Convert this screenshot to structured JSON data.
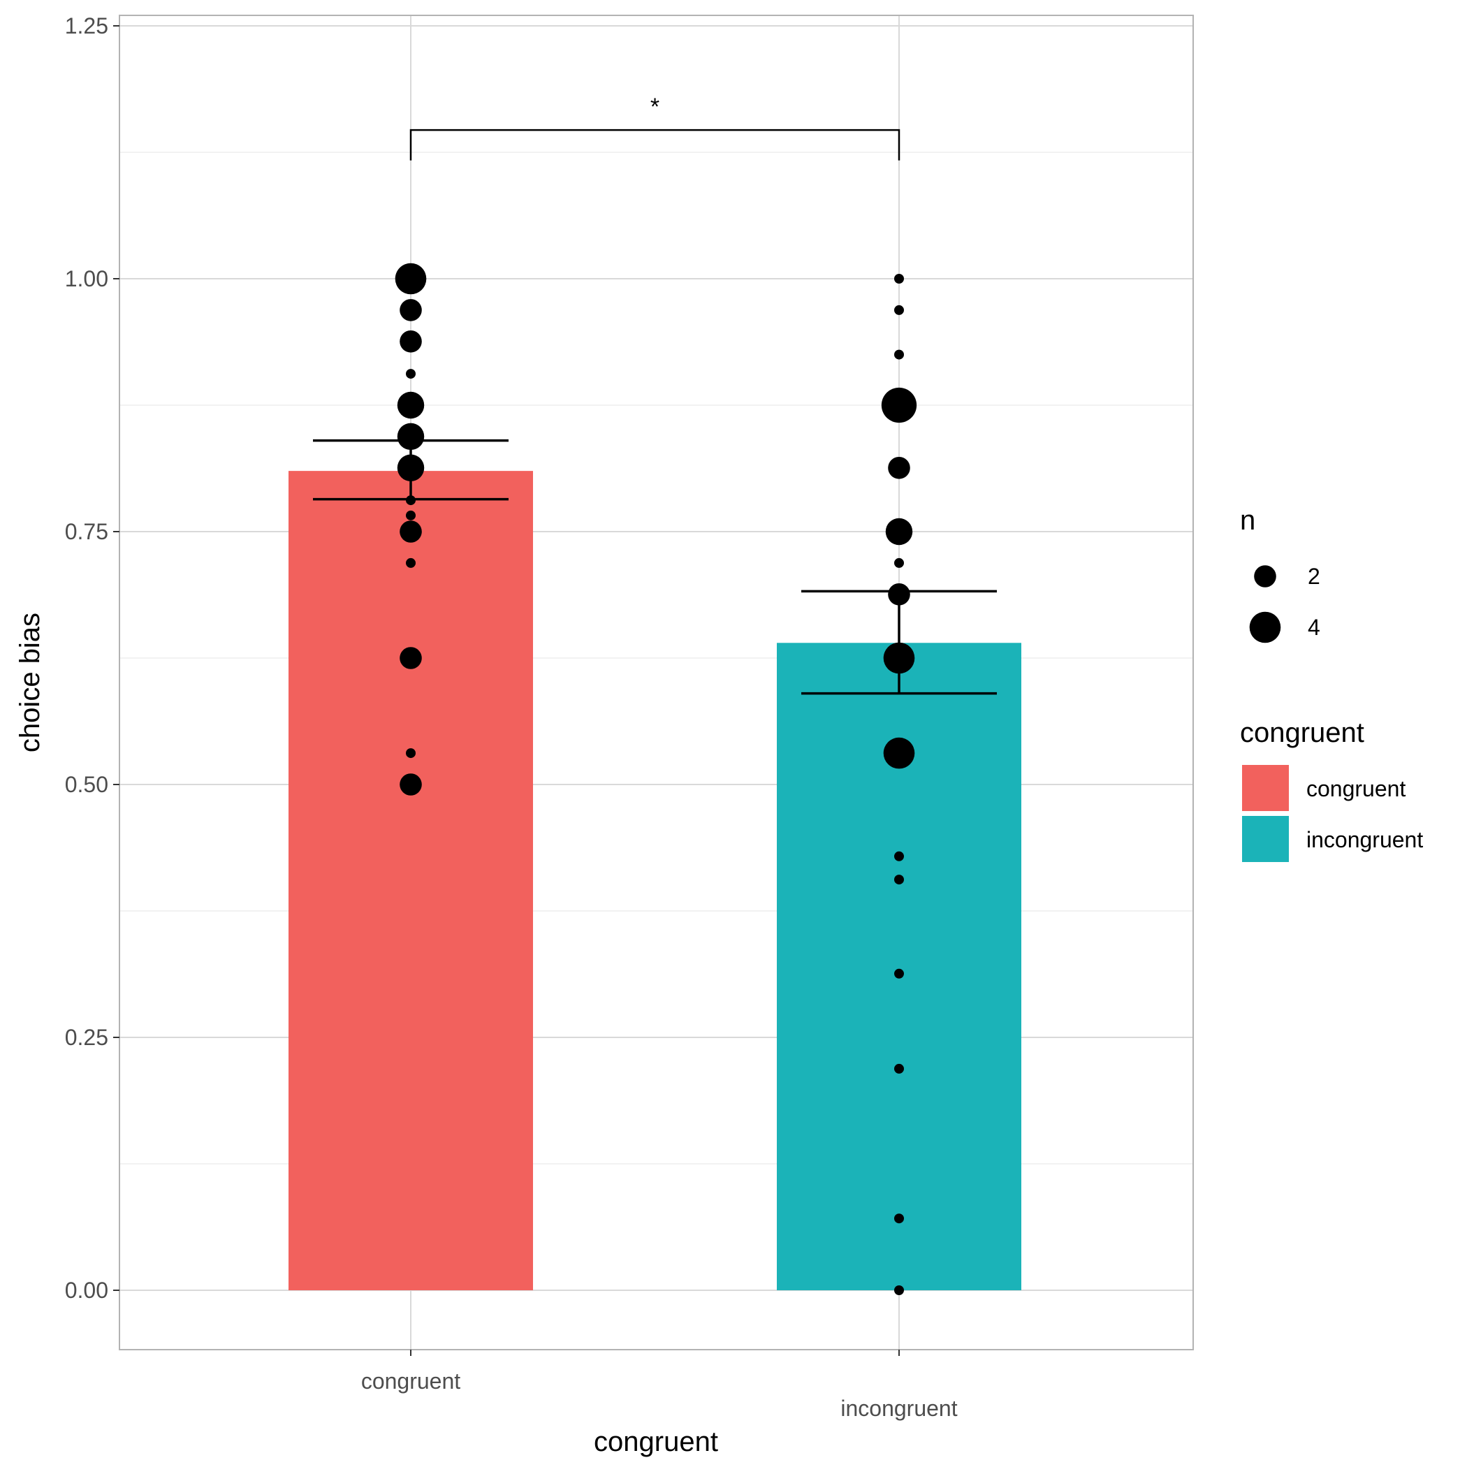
{
  "chart_data": {
    "type": "bar",
    "title": "",
    "xlabel": "congruent",
    "ylabel": "choice bias",
    "ylim": [
      -0.06,
      1.26
    ],
    "yticks": [
      0.0,
      0.25,
      0.5,
      0.75,
      1.0,
      1.25
    ],
    "ytick_labels": [
      "0.00",
      "0.25",
      "0.50",
      "0.75",
      "1.00",
      "1.25"
    ],
    "grid": true,
    "categories": [
      "congruent",
      "incongruent"
    ],
    "colors": {
      "congruent": "#F2615D",
      "incongruent": "#1BB3B8"
    },
    "bars": [
      {
        "category": "congruent",
        "mean": 0.81,
        "err_low": 0.782,
        "err_high": 0.84
      },
      {
        "category": "incongruent",
        "mean": 0.64,
        "err_low": 0.59,
        "err_high": 0.691
      }
    ],
    "points": [
      {
        "category": "congruent",
        "values": [
          1.0,
          0.969,
          0.938,
          0.906,
          0.875,
          0.844,
          0.813,
          0.781,
          0.766,
          0.75,
          0.719,
          0.625,
          0.531,
          0.5
        ],
        "n": [
          4,
          2,
          2,
          1,
          3,
          3,
          3,
          1,
          1,
          2,
          1,
          2,
          1,
          2
        ]
      },
      {
        "category": "incongruent",
        "values": [
          1.0,
          0.969,
          0.925,
          0.875,
          0.813,
          0.75,
          0.719,
          0.688,
          0.625,
          0.531,
          0.429,
          0.406,
          0.313,
          0.219,
          0.071,
          0.0
        ],
        "n": [
          1,
          1,
          1,
          5,
          2,
          3,
          1,
          2,
          4,
          4,
          1,
          1,
          1,
          1,
          1,
          1
        ]
      }
    ],
    "significance": {
      "from": "congruent",
      "to": "incongruent",
      "y": 1.147,
      "label": "*"
    },
    "legend_position": "right",
    "legend_size": {
      "title": "n",
      "entries": [
        {
          "label": "2",
          "n": 2
        },
        {
          "label": "4",
          "n": 4
        }
      ]
    },
    "legend_fill": {
      "title": "congruent",
      "entries": [
        "congruent",
        "incongruent"
      ]
    }
  }
}
